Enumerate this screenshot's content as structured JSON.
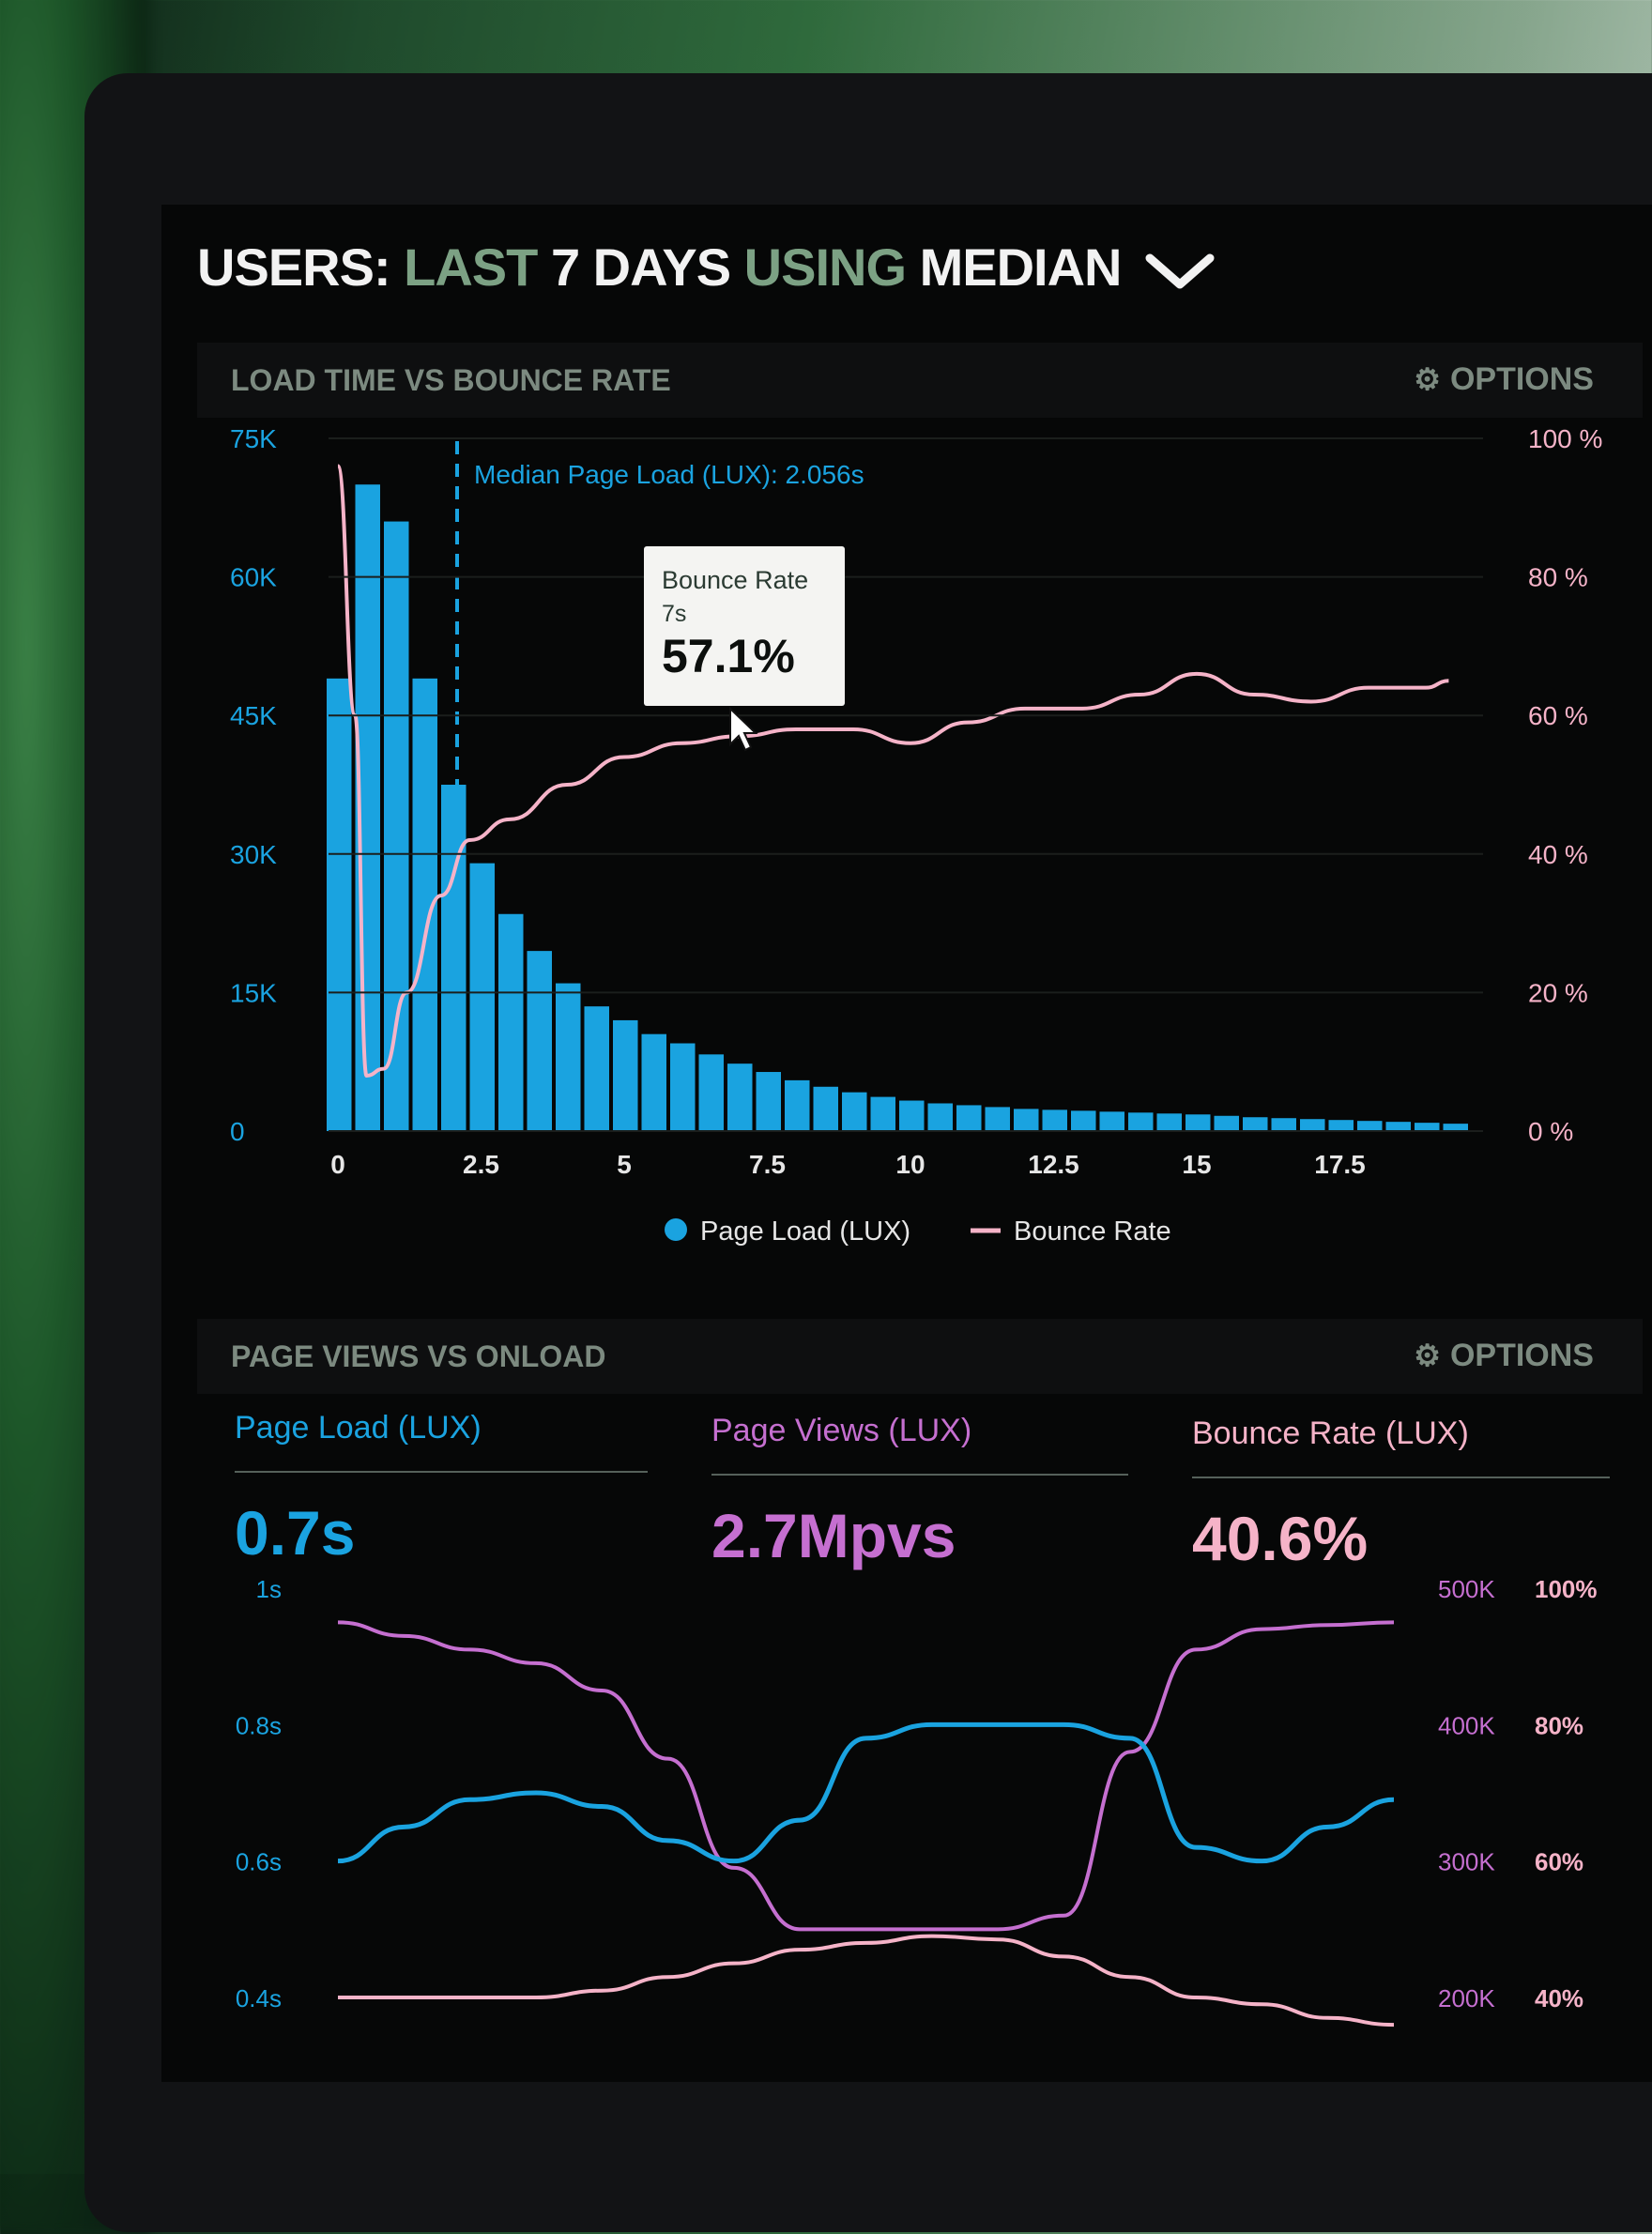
{
  "header": {
    "part1": "USERS:",
    "part2": "LAST",
    "part3": "7 DAYS",
    "part4": "USING",
    "part5": "MEDIAN"
  },
  "panel1": {
    "title": "LOAD TIME VS BOUNCE RATE",
    "options_label": "OPTIONS",
    "median_label": "Median Page Load (LUX): 2.056s",
    "tooltip": {
      "title": "Bounce Rate",
      "sub": "7s",
      "value": "57.1%"
    },
    "legend": [
      "Page Load (LUX)",
      "Bounce Rate"
    ]
  },
  "panel2": {
    "title": "PAGE VIEWS VS ONLOAD",
    "options_label": "OPTIONS",
    "kpis": [
      {
        "label": "Page Load (LUX)",
        "value": "0.7s"
      },
      {
        "label": "Page Views (LUX)",
        "value": "2.7Mpvs"
      },
      {
        "label": "Bounce Rate (LUX)",
        "value": "40.6%"
      }
    ]
  },
  "colors": {
    "blue": "#1aa3e0",
    "pink": "#f5b3c8",
    "purple": "#c56fd0",
    "green_text": "#7ca184"
  },
  "chart_data": [
    {
      "type": "bar",
      "title": "LOAD TIME VS BOUNCE RATE",
      "x_ticks": [
        "0",
        "2.5",
        "5",
        "7.5",
        "10",
        "12.5",
        "15",
        "17.5"
      ],
      "y_left_ticks": [
        "0",
        "15K",
        "30K",
        "45K",
        "60K",
        "75K"
      ],
      "y_right_ticks": [
        "0 %",
        "20 %",
        "40 %",
        "60 %",
        "80 %",
        "100 %"
      ],
      "y_left_range": [
        0,
        75000
      ],
      "y_right_range": [
        0,
        100
      ],
      "x_range": [
        0,
        20
      ],
      "median_x": 2.056,
      "series": [
        {
          "name": "Page Load (LUX)",
          "type": "bar",
          "x": [
            0,
            0.5,
            1,
            1.5,
            2,
            2.5,
            3,
            3.5,
            4,
            4.5,
            5,
            5.5,
            6,
            6.5,
            7,
            7.5,
            8,
            8.5,
            9,
            9.5,
            10,
            10.5,
            11,
            11.5,
            12,
            12.5,
            13,
            13.5,
            14,
            14.5,
            15,
            15.5,
            16,
            16.5,
            17,
            17.5,
            18,
            18.5,
            19,
            19.5
          ],
          "values": [
            49000,
            70000,
            66000,
            49000,
            37500,
            29000,
            23500,
            19500,
            16000,
            13500,
            12000,
            10500,
            9500,
            8300,
            7300,
            6400,
            5500,
            4800,
            4200,
            3700,
            3300,
            3000,
            2800,
            2600,
            2400,
            2300,
            2200,
            2100,
            2000,
            1900,
            1800,
            1650,
            1500,
            1400,
            1300,
            1200,
            1100,
            1000,
            900,
            800
          ]
        },
        {
          "name": "Bounce Rate",
          "type": "line",
          "x": [
            0,
            0.3,
            0.5,
            0.8,
            1.2,
            1.8,
            2.3,
            3,
            4,
            5,
            6,
            7,
            8,
            9,
            10,
            11,
            12,
            13,
            14,
            15,
            16,
            17,
            18,
            19,
            19.4
          ],
          "values": [
            96,
            60,
            8,
            9,
            20,
            34,
            42,
            45,
            50,
            54,
            56,
            57,
            58,
            58,
            56,
            59,
            61,
            61,
            63,
            66,
            63,
            62,
            64,
            64,
            65
          ]
        }
      ],
      "tooltip": {
        "x": 7,
        "value": 57.1
      }
    },
    {
      "type": "line",
      "title": "PAGE VIEWS VS ONLOAD",
      "y_left_ticks": [
        "1s",
        "0.8s",
        "0.6s",
        "0.4s"
      ],
      "y_left_range": [
        0.4,
        1.0
      ],
      "y_right_views_ticks": [
        "500K",
        "400K",
        "300K",
        "200K"
      ],
      "y_right_views_range": [
        200000,
        500000
      ],
      "y_right_rate_ticks": [
        "100%",
        "80%",
        "60%",
        "40%"
      ],
      "y_right_rate_range": [
        40,
        100
      ],
      "x": [
        0,
        1,
        2,
        3,
        4,
        5,
        6,
        7,
        8,
        9,
        10,
        11,
        12,
        13,
        14,
        15,
        16
      ],
      "series": [
        {
          "name": "Page Load (LUX)",
          "axis": "time",
          "values": [
            0.6,
            0.65,
            0.69,
            0.7,
            0.68,
            0.63,
            0.6,
            0.66,
            0.78,
            0.8,
            0.8,
            0.8,
            0.78,
            0.62,
            0.6,
            0.65,
            0.69
          ]
        },
        {
          "name": "Page Views (LUX)",
          "axis": "views",
          "values": [
            475000,
            465000,
            455000,
            445000,
            425000,
            375000,
            295000,
            250000,
            250000,
            250000,
            250000,
            260000,
            380000,
            455000,
            470000,
            473000,
            475000
          ]
        },
        {
          "name": "Bounce Rate (LUX)",
          "axis": "rate",
          "values": [
            40,
            40,
            40,
            40,
            41,
            43,
            45,
            47,
            48,
            49,
            48.5,
            46,
            43,
            40,
            39,
            37,
            36
          ]
        }
      ]
    }
  ]
}
